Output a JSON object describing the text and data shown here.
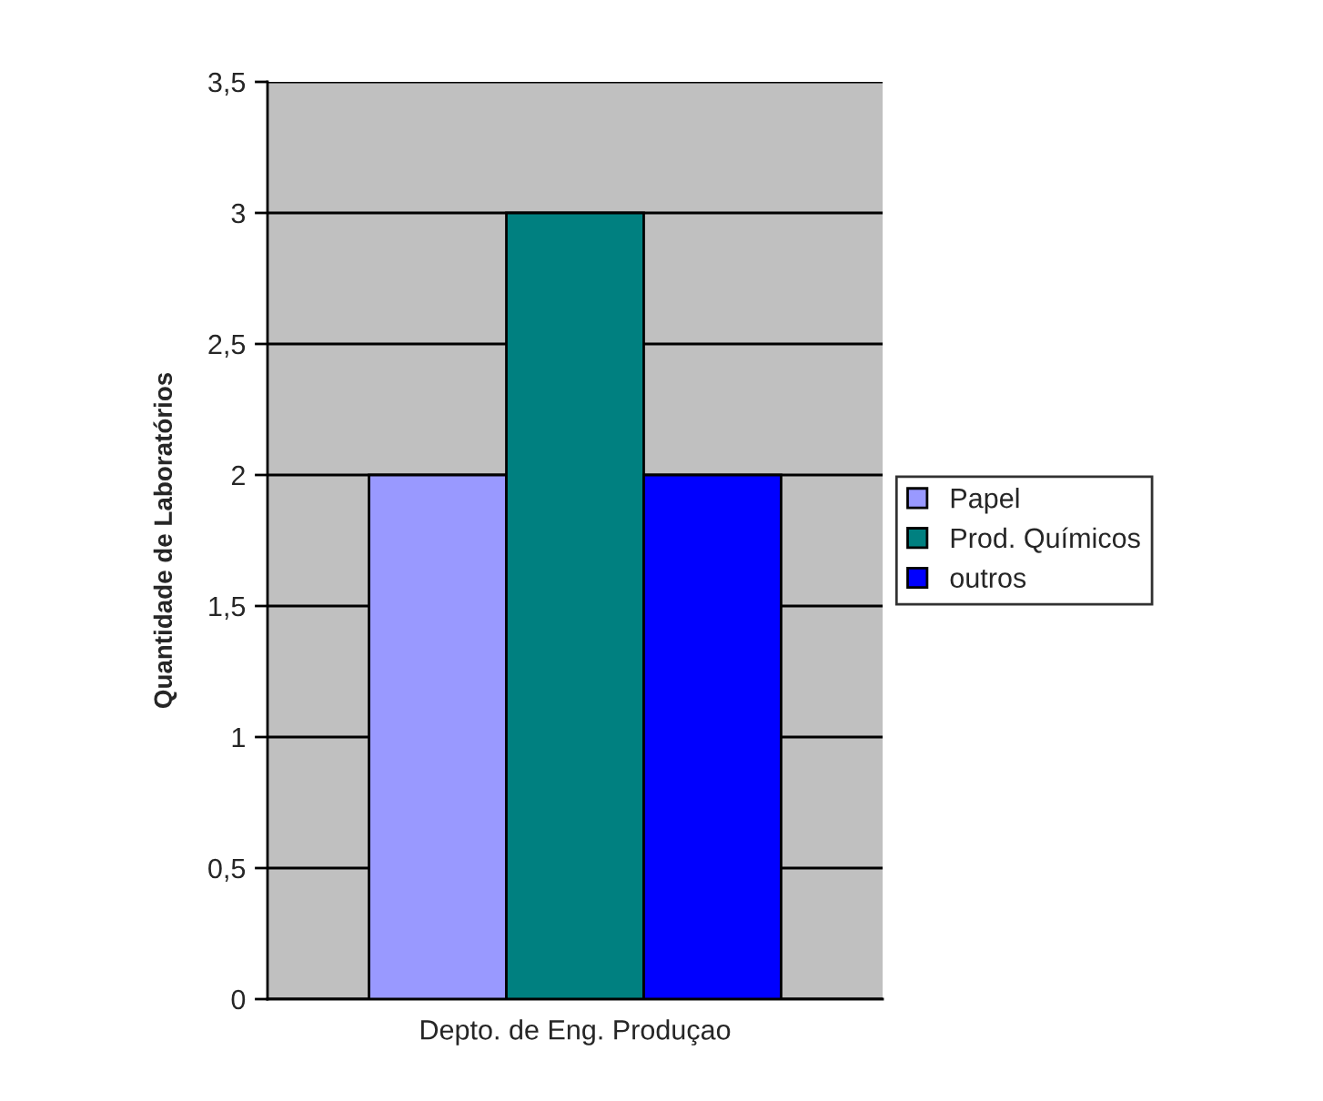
{
  "chart_data": {
    "type": "bar",
    "ylabel": "Quantidade de Laboratórios",
    "categories": [
      "Depto. de Eng. Produçao"
    ],
    "series": [
      {
        "name": "Papel",
        "color": "#9999ff",
        "values": [
          2
        ]
      },
      {
        "name": "Prod. Químicos",
        "color": "#008080",
        "values": [
          3
        ]
      },
      {
        "name": "outros",
        "color": "#0000ff",
        "values": [
          2
        ]
      }
    ],
    "ylim": [
      0,
      3.5
    ],
    "yticks": [
      0,
      {
        "value": 0.5,
        "label": "0,5"
      },
      1,
      {
        "value": 1.5,
        "label": "1,5"
      },
      2,
      {
        "value": 2.5,
        "label": "2,5"
      },
      3,
      {
        "value": 3.5,
        "label": "3,5"
      }
    ],
    "grid": "y",
    "legend": "right"
  }
}
